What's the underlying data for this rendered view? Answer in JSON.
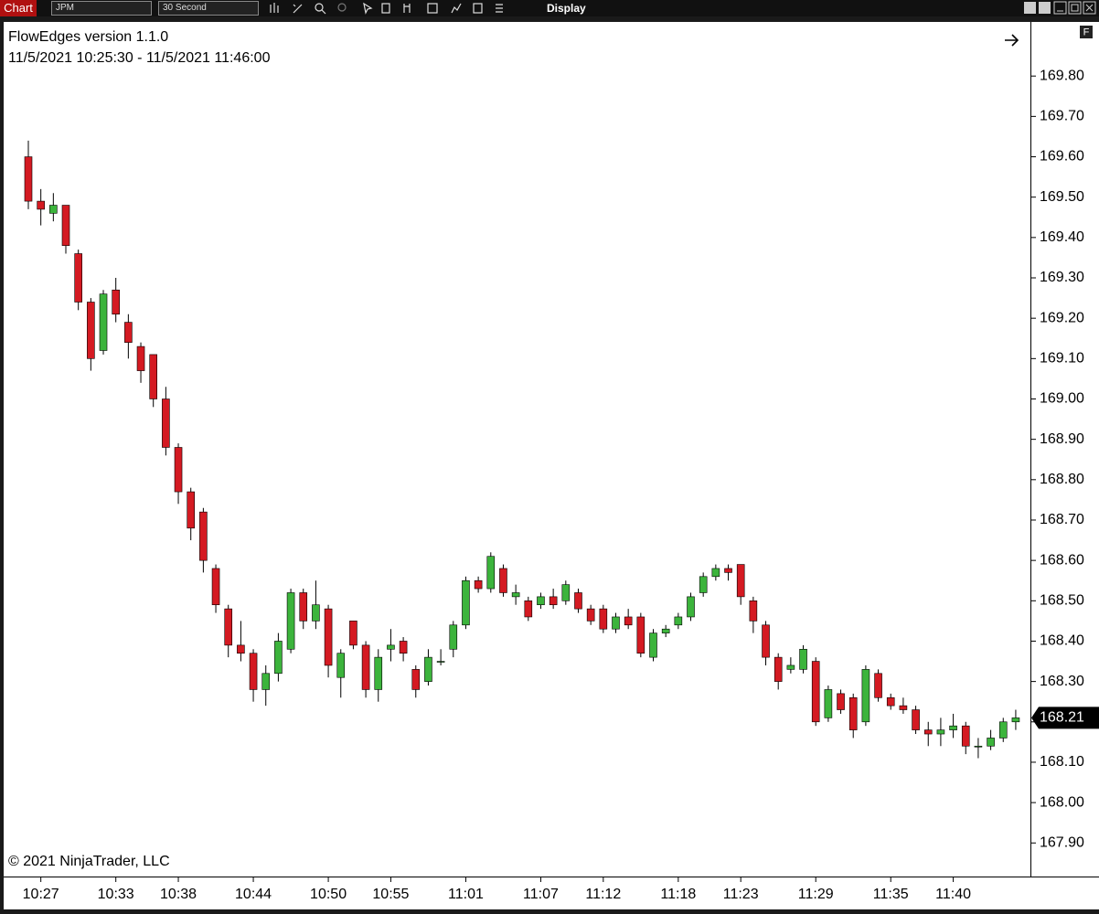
{
  "toolbar": {
    "tab": "Chart",
    "instrument": "JPM",
    "interval": "30 Second",
    "menu": "Display"
  },
  "badge": "F",
  "chart_data": {
    "type": "candlestick",
    "title": "FlowEdges version 1.1.0",
    "subtitle": "11/5/2021 10:25:30 - 11/5/2021 11:46:00",
    "annotation": "© 2021 NinjaTrader, LLC",
    "up_color": "#3cb43c",
    "down_color": "#d41a22",
    "categories": [
      null,
      "10:27",
      null,
      null,
      null,
      null,
      null,
      "10:33",
      null,
      null,
      null,
      null,
      "10:38",
      null,
      null,
      null,
      null,
      null,
      "10:44",
      null,
      null,
      null,
      null,
      null,
      "10:50",
      null,
      null,
      null,
      null,
      "10:55",
      null,
      null,
      null,
      null,
      null,
      "11:01",
      null,
      null,
      null,
      null,
      null,
      "11:07",
      null,
      null,
      null,
      null,
      "11:12",
      null,
      null,
      null,
      null,
      null,
      "11:18",
      null,
      null,
      null,
      null,
      "11:23",
      null,
      null,
      null,
      null,
      null,
      "11:29",
      null,
      null,
      null,
      null,
      null,
      "11:35",
      null,
      null,
      null,
      null,
      "11:40",
      null,
      null,
      null,
      null,
      null
    ],
    "open": [
      169.6,
      169.49,
      169.46,
      169.48,
      169.36,
      169.24,
      169.12,
      169.27,
      169.19,
      169.13,
      169.11,
      169.0,
      168.88,
      168.77,
      168.72,
      168.58,
      168.48,
      168.39,
      168.37,
      168.28,
      168.32,
      168.38,
      168.52,
      168.45,
      168.48,
      168.31,
      168.45,
      168.39,
      168.28,
      168.38,
      168.4,
      168.33,
      168.3,
      168.35,
      168.38,
      168.44,
      168.55,
      168.53,
      168.58,
      168.51,
      168.5,
      168.49,
      168.51,
      168.5,
      168.52,
      168.48,
      168.48,
      168.43,
      168.46,
      168.46,
      168.36,
      168.42,
      168.44,
      168.46,
      168.52,
      168.56,
      168.58,
      168.59,
      168.5,
      168.44,
      168.36,
      168.33,
      168.33,
      168.35,
      168.21,
      168.27,
      168.26,
      168.2,
      168.32,
      168.26,
      168.24,
      168.23,
      168.18,
      168.17,
      168.18,
      168.19,
      168.14,
      168.14,
      168.16,
      168.2
    ],
    "high": [
      169.64,
      169.52,
      169.51,
      169.48,
      169.37,
      169.25,
      169.27,
      169.3,
      169.21,
      169.14,
      169.11,
      169.03,
      168.89,
      168.78,
      168.73,
      168.59,
      168.49,
      168.45,
      168.38,
      168.34,
      168.42,
      168.53,
      168.53,
      168.55,
      168.49,
      168.38,
      168.45,
      168.4,
      168.38,
      168.43,
      168.41,
      168.34,
      168.38,
      168.38,
      168.45,
      168.56,
      168.56,
      168.62,
      168.59,
      168.54,
      168.51,
      168.52,
      168.53,
      168.55,
      168.53,
      168.49,
      168.49,
      168.47,
      168.48,
      168.47,
      168.43,
      168.44,
      168.47,
      168.52,
      168.57,
      168.59,
      168.59,
      168.59,
      168.51,
      168.45,
      168.37,
      168.36,
      168.39,
      168.36,
      168.29,
      168.28,
      168.27,
      168.34,
      168.33,
      168.27,
      168.26,
      168.24,
      168.2,
      168.21,
      168.22,
      168.2,
      168.16,
      168.18,
      168.21,
      168.23
    ],
    "low": [
      169.47,
      169.43,
      169.44,
      169.36,
      169.22,
      169.07,
      169.11,
      169.19,
      169.1,
      169.04,
      168.98,
      168.86,
      168.74,
      168.65,
      168.57,
      168.47,
      168.36,
      168.35,
      168.25,
      168.24,
      168.3,
      168.37,
      168.43,
      168.43,
      168.31,
      168.26,
      168.38,
      168.26,
      168.25,
      168.35,
      168.35,
      168.26,
      168.29,
      168.34,
      168.36,
      168.43,
      168.52,
      168.52,
      168.51,
      168.49,
      168.45,
      168.48,
      168.48,
      168.49,
      168.47,
      168.44,
      168.42,
      168.42,
      168.43,
      168.36,
      168.35,
      168.41,
      168.43,
      168.45,
      168.51,
      168.55,
      168.55,
      168.49,
      168.42,
      168.34,
      168.28,
      168.32,
      168.32,
      168.19,
      168.2,
      168.22,
      168.16,
      168.19,
      168.25,
      168.23,
      168.22,
      168.17,
      168.14,
      168.14,
      168.16,
      168.12,
      168.11,
      168.13,
      168.15,
      168.18
    ],
    "close": [
      169.49,
      169.47,
      169.48,
      169.38,
      169.24,
      169.1,
      169.26,
      169.21,
      169.14,
      169.07,
      169.0,
      168.88,
      168.77,
      168.68,
      168.6,
      168.49,
      168.39,
      168.37,
      168.28,
      168.32,
      168.4,
      168.52,
      168.45,
      168.49,
      168.34,
      168.37,
      168.39,
      168.28,
      168.36,
      168.39,
      168.37,
      168.28,
      168.36,
      168.35,
      168.44,
      168.55,
      168.53,
      168.61,
      168.52,
      168.52,
      168.46,
      168.51,
      168.49,
      168.54,
      168.48,
      168.45,
      168.43,
      168.46,
      168.44,
      168.37,
      168.42,
      168.43,
      168.46,
      168.51,
      168.56,
      168.58,
      168.57,
      168.51,
      168.45,
      168.36,
      168.3,
      168.34,
      168.38,
      168.2,
      168.28,
      168.23,
      168.18,
      168.33,
      168.26,
      168.24,
      168.23,
      168.18,
      168.17,
      168.18,
      168.19,
      168.14,
      168.14,
      168.16,
      168.2,
      168.21
    ],
    "ylim": [
      167.82,
      169.925
    ],
    "yticks": [
      {
        "value": 167.9,
        "label": "167.90"
      },
      {
        "value": 168.0,
        "label": "168.00"
      },
      {
        "value": 168.1,
        "label": "168.10"
      },
      {
        "value": 168.2,
        "label": "168.20"
      },
      {
        "value": 168.3,
        "label": "168.30"
      },
      {
        "value": 168.4,
        "label": "168.40"
      },
      {
        "value": 168.5,
        "label": "168.50"
      },
      {
        "value": 168.6,
        "label": "168.60"
      },
      {
        "value": 168.7,
        "label": "168.70"
      },
      {
        "value": 168.8,
        "label": "168.80"
      },
      {
        "value": 168.9,
        "label": "168.90"
      },
      {
        "value": 169.0,
        "label": "169.00"
      },
      {
        "value": 169.1,
        "label": "169.10"
      },
      {
        "value": 169.2,
        "label": "169.20"
      },
      {
        "value": 169.3,
        "label": "169.30"
      },
      {
        "value": 169.4,
        "label": "169.40"
      },
      {
        "value": 169.5,
        "label": "169.50"
      },
      {
        "value": 169.6,
        "label": "169.60"
      },
      {
        "value": 169.7,
        "label": "169.70"
      },
      {
        "value": 169.8,
        "label": "169.80"
      }
    ]
  }
}
